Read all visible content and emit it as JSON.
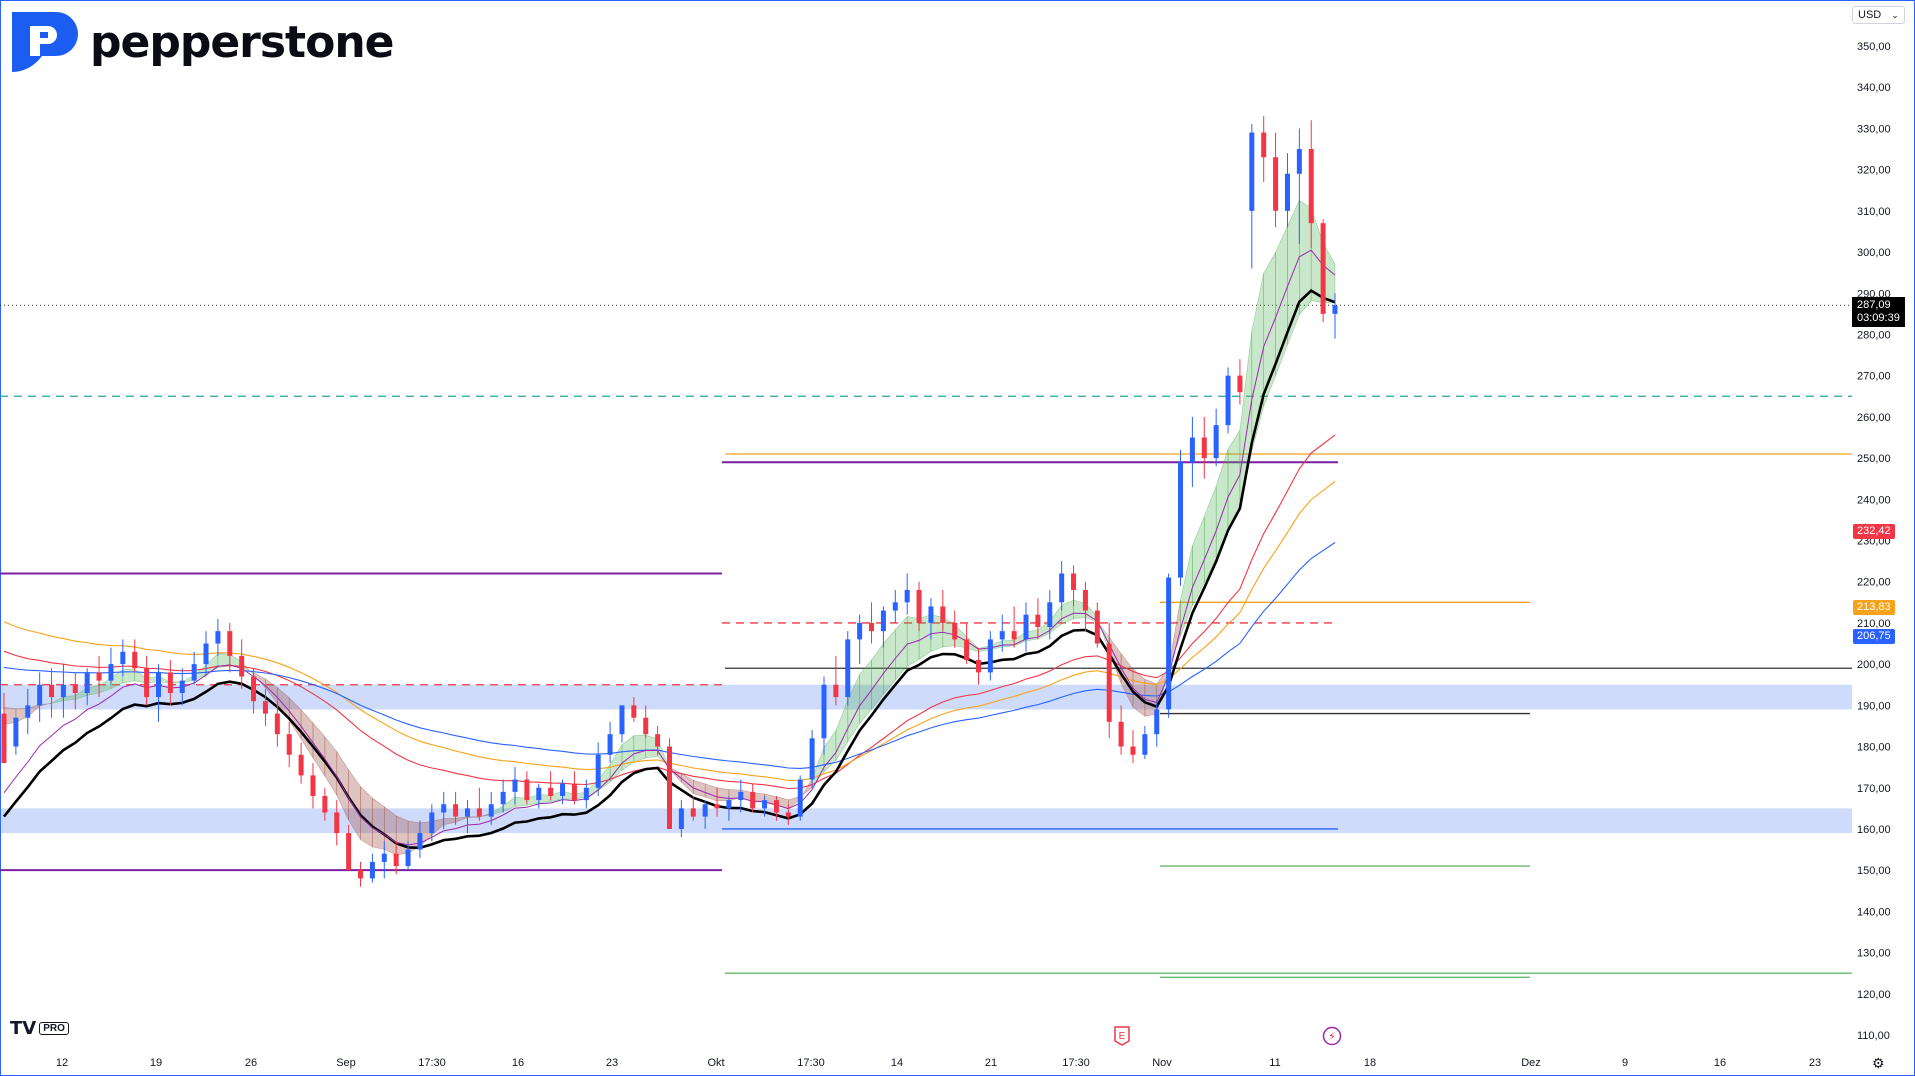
{
  "brand": {
    "name": "pepperstone",
    "color": "#0b0b14",
    "mark_color": "#1a5df0"
  },
  "badge": {
    "tv": "TV",
    "pro": "PRO"
  },
  "currency": {
    "label": "USD",
    "arrow": "⌄"
  },
  "settings_icon": "gear-icon",
  "last_price": {
    "value": "287,09",
    "countdown": "03:09:39"
  },
  "price_tags": [
    {
      "value": "232,42",
      "price": 232.42,
      "color": "#f23645"
    },
    {
      "value": "213,83",
      "price": 213.83,
      "color": "#f7a21b"
    },
    {
      "value": "206,75",
      "price": 206.75,
      "color": "#2962ff"
    }
  ],
  "events": [
    {
      "label": "E",
      "icon": "earnings-icon",
      "color": "#f23645"
    },
    {
      "label": "⚡",
      "icon": "split-icon",
      "color": "#9c27b0"
    }
  ],
  "chart_data": {
    "type": "candlestick",
    "ylim": [
      108,
      357
    ],
    "y_ticks": [
      "110,00",
      "120,00",
      "130,00",
      "140,00",
      "150,00",
      "160,00",
      "170,00",
      "180,00",
      "190,00",
      "200,00",
      "210,00",
      "220,00",
      "230,00",
      "240,00",
      "250,00",
      "260,00",
      "270,00",
      "280,00",
      "290,00",
      "300,00",
      "310,00",
      "320,00",
      "330,00",
      "340,00",
      "350,00"
    ],
    "x_ticks": [
      "12",
      "19",
      "26",
      "Sep",
      "17:30",
      "16",
      "23",
      "Okt",
      "17:30",
      "14",
      "21",
      "17:30",
      "Nov",
      "11",
      "18",
      "Dez",
      "9",
      "16",
      "23"
    ],
    "candles": [
      [
        188,
        193,
        178,
        176
      ],
      [
        180,
        187,
        178,
        187
      ],
      [
        187,
        194,
        183,
        190
      ],
      [
        190,
        198,
        186,
        195
      ],
      [
        195,
        199,
        187,
        192
      ],
      [
        192,
        200,
        187,
        195
      ],
      [
        195,
        198,
        189,
        193
      ],
      [
        193,
        199,
        190,
        198
      ],
      [
        198,
        202,
        192,
        196
      ],
      [
        196,
        204,
        195,
        200
      ],
      [
        200,
        206,
        197,
        203
      ],
      [
        203,
        206,
        198,
        199
      ],
      [
        199,
        202,
        190,
        192
      ],
      [
        192,
        200,
        186,
        198
      ],
      [
        198,
        201,
        190,
        193
      ],
      [
        193,
        199,
        190,
        196
      ],
      [
        196,
        203,
        195,
        200
      ],
      [
        200,
        208,
        197,
        205
      ],
      [
        205,
        211,
        202,
        208
      ],
      [
        208,
        210,
        198,
        202
      ],
      [
        202,
        206,
        194,
        197
      ],
      [
        197,
        199,
        188,
        191
      ],
      [
        191,
        194,
        185,
        188
      ],
      [
        188,
        191,
        180,
        183
      ],
      [
        183,
        186,
        175,
        178
      ],
      [
        178,
        181,
        171,
        173
      ],
      [
        173,
        176,
        165,
        168
      ],
      [
        168,
        170,
        162,
        164
      ],
      [
        164,
        167,
        156,
        159
      ],
      [
        159,
        161,
        150,
        150
      ],
      [
        150,
        152,
        146,
        148
      ],
      [
        148,
        154,
        147,
        152
      ],
      [
        152,
        157,
        148,
        154
      ],
      [
        154,
        157,
        149,
        151
      ],
      [
        151,
        157,
        150,
        155
      ],
      [
        155,
        162,
        153,
        159
      ],
      [
        159,
        166,
        157,
        164
      ],
      [
        164,
        169,
        160,
        166
      ],
      [
        166,
        169,
        161,
        163
      ],
      [
        163,
        167,
        159,
        165
      ],
      [
        165,
        170,
        162,
        163
      ],
      [
        163,
        169,
        161,
        166
      ],
      [
        166,
        172,
        164,
        169
      ],
      [
        169,
        175,
        166,
        172
      ],
      [
        172,
        174,
        166,
        167
      ],
      [
        167,
        171,
        165,
        170
      ],
      [
        170,
        174,
        167,
        168
      ],
      [
        168,
        172,
        166,
        171
      ],
      [
        171,
        174,
        166,
        167
      ],
      [
        167,
        172,
        165,
        170
      ],
      [
        170,
        181,
        168,
        178
      ],
      [
        178,
        186,
        176,
        183
      ],
      [
        183,
        190,
        181,
        190
      ],
      [
        190,
        192,
        186,
        187
      ],
      [
        187,
        190,
        182,
        183
      ],
      [
        183,
        185,
        178,
        180
      ],
      [
        180,
        182,
        160,
        160
      ],
      [
        160,
        167,
        158,
        165
      ],
      [
        165,
        168,
        162,
        163
      ],
      [
        163,
        167,
        160,
        166
      ],
      [
        166,
        170,
        163,
        165
      ],
      [
        165,
        168,
        162,
        167
      ],
      [
        167,
        172,
        164,
        169
      ],
      [
        169,
        171,
        164,
        165
      ],
      [
        165,
        168,
        163,
        167
      ],
      [
        167,
        168,
        162,
        164
      ],
      [
        164,
        166,
        161,
        163
      ],
      [
        163,
        173,
        162,
        172
      ],
      [
        172,
        184,
        170,
        182
      ],
      [
        182,
        197,
        178,
        195
      ],
      [
        195,
        202,
        190,
        192
      ],
      [
        192,
        208,
        190,
        206
      ],
      [
        206,
        212,
        200,
        210
      ],
      [
        210,
        215,
        205,
        208
      ],
      [
        208,
        214,
        204,
        213
      ],
      [
        213,
        218,
        210,
        215
      ],
      [
        215,
        222,
        212,
        218
      ],
      [
        218,
        220,
        208,
        210
      ],
      [
        210,
        216,
        206,
        214
      ],
      [
        214,
        218,
        208,
        210
      ],
      [
        210,
        213,
        204,
        206
      ],
      [
        206,
        210,
        200,
        201
      ],
      [
        201,
        204,
        195,
        198
      ],
      [
        198,
        208,
        196,
        206
      ],
      [
        206,
        212,
        203,
        208
      ],
      [
        208,
        214,
        204,
        206
      ],
      [
        206,
        215,
        203,
        212
      ],
      [
        212,
        216,
        206,
        209
      ],
      [
        209,
        218,
        206,
        215
      ],
      [
        215,
        225,
        213,
        222
      ],
      [
        222,
        224,
        214,
        218
      ],
      [
        218,
        220,
        208,
        213
      ],
      [
        213,
        215,
        204,
        205
      ],
      [
        205,
        210,
        182,
        186
      ],
      [
        186,
        190,
        178,
        180
      ],
      [
        180,
        184,
        176,
        178
      ],
      [
        178,
        185,
        177,
        183
      ],
      [
        183,
        191,
        180,
        189
      ],
      [
        189,
        222,
        187,
        221
      ],
      [
        221,
        252,
        219,
        249
      ],
      [
        249,
        260,
        243,
        255
      ],
      [
        255,
        260,
        245,
        250
      ],
      [
        250,
        262,
        248,
        258
      ],
      [
        258,
        272,
        256,
        270
      ],
      [
        270,
        274,
        263,
        266
      ],
      [
        310,
        331,
        296,
        329
      ],
      [
        329,
        333,
        317,
        323
      ],
      [
        323,
        329,
        306,
        310
      ],
      [
        310,
        324,
        306,
        319
      ],
      [
        319,
        330,
        302,
        325
      ],
      [
        325,
        332,
        301,
        307
      ],
      [
        307,
        308,
        283,
        285
      ],
      [
        285,
        290,
        279,
        287.09
      ]
    ],
    "zones": [
      {
        "from": 189,
        "to": 195
      },
      {
        "from": 159,
        "to": 165
      }
    ],
    "levels": [
      {
        "price": 222,
        "color": "#7b1fa2"
      },
      {
        "price": 150,
        "color": "#7b1fa2"
      },
      {
        "price": 195,
        "color": "#f23645",
        "dashed": true
      },
      {
        "price": 249,
        "color": "#7b1fa2"
      },
      {
        "price": 251,
        "color": "#f7a21b"
      },
      {
        "price": 199,
        "color": "#333333"
      },
      {
        "price": 210,
        "color": "#f23645",
        "dashed": true
      },
      {
        "price": 160,
        "color": "#2962ff"
      },
      {
        "price": 125,
        "color": "#66bb6a"
      },
      {
        "price": 215,
        "color": "#f7a21b"
      },
      {
        "price": 188,
        "color": "#333333"
      },
      {
        "price": 151,
        "color": "#66bb6a"
      },
      {
        "price": 124,
        "color": "#66bb6a"
      },
      {
        "price": 265,
        "color": "#26a69a",
        "dashed": true
      }
    ],
    "colors": {
      "up": "#2962ff",
      "down": "#f23645"
    }
  }
}
